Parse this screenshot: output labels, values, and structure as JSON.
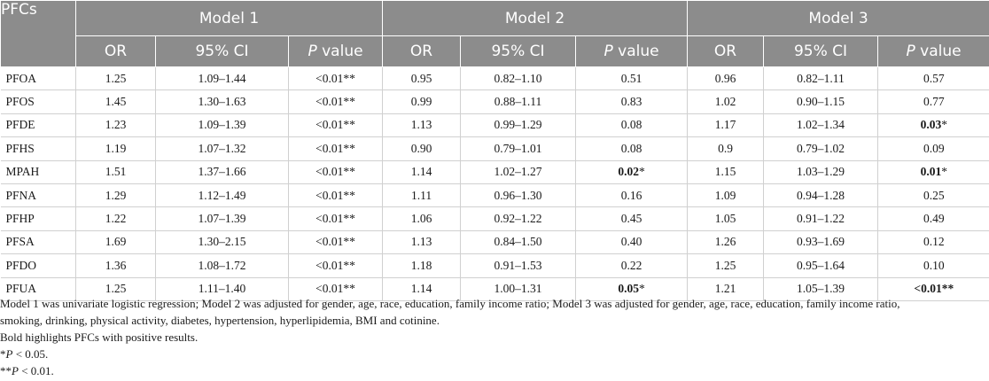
{
  "table": {
    "first_header": "PFCs",
    "models": [
      "Model 1",
      "Model 2",
      "Model 3"
    ],
    "sub_or": "OR",
    "sub_ci": "95% CI",
    "sub_p_italic": "P",
    "sub_p_rest": " value",
    "rows": [
      {
        "name": "PFOA",
        "m1": {
          "or": "1.25",
          "ci": "1.09–1.44",
          "p": "<0.01",
          "s": "**"
        },
        "m2": {
          "or": "0.95",
          "ci": "0.82–1.10",
          "p": "0.51",
          "s": ""
        },
        "m3": {
          "or": "0.96",
          "ci": "0.82–1.11",
          "p": "0.57",
          "s": ""
        }
      },
      {
        "name": "PFOS",
        "m1": {
          "or": "1.45",
          "ci": "1.30–1.63",
          "p": "<0.01",
          "s": "**"
        },
        "m2": {
          "or": "0.99",
          "ci": "0.88–1.11",
          "p": "0.83",
          "s": ""
        },
        "m3": {
          "or": "1.02",
          "ci": "0.90–1.15",
          "p": "0.77",
          "s": ""
        }
      },
      {
        "name": "PFDE",
        "m1": {
          "or": "1.23",
          "ci": "1.09–1.39",
          "p": "<0.01",
          "s": "**"
        },
        "m2": {
          "or": "1.13",
          "ci": "0.99–1.29",
          "p": "0.08",
          "s": ""
        },
        "m3": {
          "or": "1.17",
          "ci": "1.02–1.34",
          "p": "0.03",
          "s": "*",
          "bold": true
        }
      },
      {
        "name": "PFHS",
        "m1": {
          "or": "1.19",
          "ci": "1.07–1.32",
          "p": "<0.01",
          "s": "**"
        },
        "m2": {
          "or": "0.90",
          "ci": "0.79–1.01",
          "p": "0.08",
          "s": ""
        },
        "m3": {
          "or": "0.9",
          "ci": "0.79–1.02",
          "p": "0.09",
          "s": ""
        }
      },
      {
        "name": "MPAH",
        "m1": {
          "or": "1.51",
          "ci": "1.37–1.66",
          "p": "<0.01",
          "s": "**"
        },
        "m2": {
          "or": "1.14",
          "ci": "1.02–1.27",
          "p": "0.02",
          "s": "*",
          "bold": true
        },
        "m3": {
          "or": "1.15",
          "ci": "1.03–1.29",
          "p": "0.01",
          "s": "*",
          "bold": true
        }
      },
      {
        "name": "PFNA",
        "m1": {
          "or": "1.29",
          "ci": "1.12–1.49",
          "p": "<0.01",
          "s": "**"
        },
        "m2": {
          "or": "1.11",
          "ci": "0.96–1.30",
          "p": "0.16",
          "s": ""
        },
        "m3": {
          "or": "1.09",
          "ci": "0.94–1.28",
          "p": "0.25",
          "s": ""
        }
      },
      {
        "name": "PFHP",
        "m1": {
          "or": "1.22",
          "ci": "1.07–1.39",
          "p": "<0.01",
          "s": "**"
        },
        "m2": {
          "or": "1.06",
          "ci": "0.92–1.22",
          "p": "0.45",
          "s": ""
        },
        "m3": {
          "or": "1.05",
          "ci": "0.91–1.22",
          "p": "0.49",
          "s": ""
        }
      },
      {
        "name": "PFSA",
        "m1": {
          "or": "1.69",
          "ci": "1.30–2.15",
          "p": "<0.01",
          "s": "**"
        },
        "m2": {
          "or": "1.13",
          "ci": "0.84–1.50",
          "p": "0.40",
          "s": ""
        },
        "m3": {
          "or": "1.26",
          "ci": "0.93–1.69",
          "p": "0.12",
          "s": ""
        }
      },
      {
        "name": "PFDO",
        "m1": {
          "or": "1.36",
          "ci": "1.08–1.72",
          "p": "<0.01",
          "s": "**"
        },
        "m2": {
          "or": "1.18",
          "ci": "0.91–1.53",
          "p": "0.22",
          "s": ""
        },
        "m3": {
          "or": "1.25",
          "ci": "0.95–1.64",
          "p": "0.10",
          "s": ""
        }
      },
      {
        "name": "PFUA",
        "m1": {
          "or": "1.25",
          "ci": "1.11–1.40",
          "p": "<0.01",
          "s": "**"
        },
        "m2": {
          "or": "1.14",
          "ci": "1.00–1.31",
          "p": "0.05",
          "s": "*",
          "bold": true
        },
        "m3": {
          "or": "1.21",
          "ci": "1.05–1.39",
          "p": "<0.01",
          "s": "**",
          "bold": true
        }
      }
    ]
  },
  "notes": {
    "line1": "Model 1 was univariate logistic regression; Model 2 was adjusted for gender, age, race, education, family income ratio; Model 3 was adjusted for gender, age, race, education, family income ratio,",
    "line2": "smoking, drinking, physical activity, diabetes, hypertension, hyperlipidemia, BMI and cotinine.",
    "line3": "Bold highlights PFCs with positive results.",
    "sig1_star": "*",
    "sig1_p": "P",
    "sig1_rest": " < 0.05.",
    "sig2_star": "**",
    "sig2_p": "P",
    "sig2_rest": " < 0.01."
  }
}
